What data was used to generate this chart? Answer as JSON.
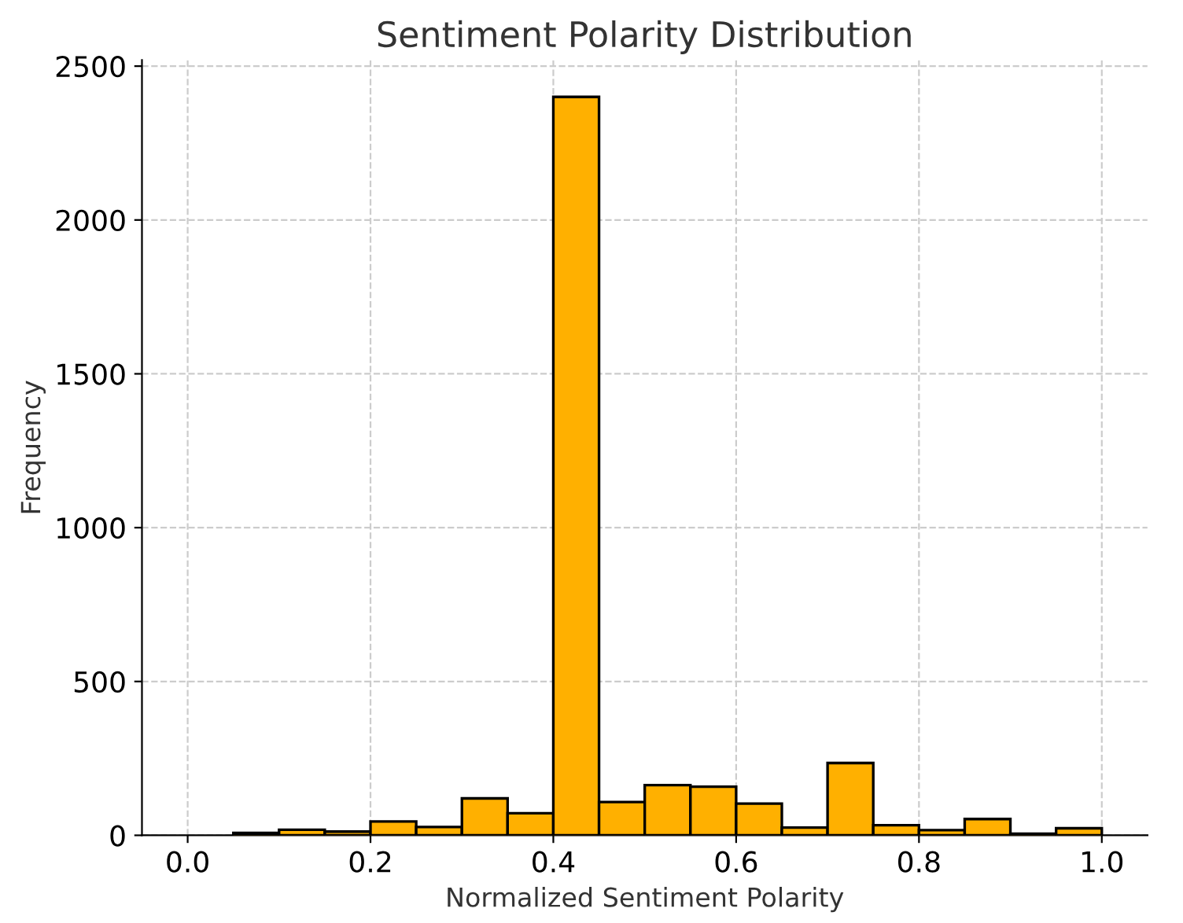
{
  "chart_data": {
    "type": "histogram",
    "title": "Sentiment Polarity Distribution",
    "xlabel": "Normalized Sentiment Polarity",
    "ylabel": "Frequency",
    "bins": [
      0.0,
      0.05,
      0.1,
      0.15,
      0.2,
      0.25,
      0.3,
      0.35,
      0.4,
      0.45,
      0.5,
      0.55,
      0.6,
      0.65,
      0.7,
      0.75,
      0.8,
      0.85,
      0.9,
      0.95,
      1.0
    ],
    "values": [
      0,
      8,
      18,
      12,
      45,
      27,
      120,
      72,
      2400,
      108,
      163,
      158,
      103,
      25,
      235,
      33,
      17,
      53,
      5,
      23
    ],
    "color": "#ffb000",
    "xlim": [
      -0.05,
      1.05
    ],
    "ylim": [
      0,
      2520
    ],
    "xticks": [
      {
        "value": 0.0,
        "label": "0.0"
      },
      {
        "value": 0.2,
        "label": "0.2"
      },
      {
        "value": 0.4,
        "label": "0.4"
      },
      {
        "value": 0.6,
        "label": "0.6"
      },
      {
        "value": 0.8,
        "label": "0.8"
      },
      {
        "value": 1.0,
        "label": "1.0"
      }
    ],
    "yticks": [
      0,
      500,
      1000,
      1500,
      2000,
      2500
    ],
    "grid": true
  }
}
